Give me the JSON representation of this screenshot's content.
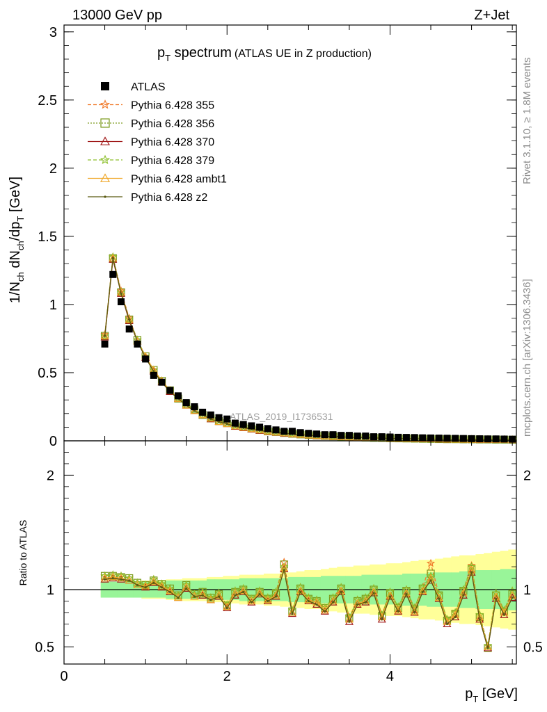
{
  "header": {
    "energy_label": "13000 GeV pp",
    "process_label": "Z+Jet",
    "plot_title_main": "p",
    "plot_title_sub": "T",
    "plot_title_rest": " spectrum",
    "plot_title_paren": "(ATLAS UE in Z production)",
    "watermark": "ATLAS_2019_I1736531",
    "side_label_top": "Rivet 3.1.10, ≥ 1.8M events",
    "side_label_bottom": "mcplots.cern.ch [arXiv:1306.3436]"
  },
  "colors": {
    "data": "#000000",
    "p355": "#f07a2a",
    "p356": "#7a9a1a",
    "p370": "#a01818",
    "p379": "#8cbf2a",
    "ambt1": "#f0a82a",
    "z2": "#5a5a12",
    "band_inner": "#99f599",
    "band_outer": "#ffff99"
  },
  "chart_data": [
    {
      "type": "scatter",
      "title": "pT spectrum (ATLAS UE in Z production)",
      "ylabel": "1/N_ch dN_ch/dp_T [GeV]",
      "xlabel": "p_T [GeV]",
      "xlim": [
        0,
        5.55
      ],
      "ylim": [
        0,
        3.05
      ],
      "yticks": [
        "0",
        "0.5",
        "1",
        "1.5",
        "2",
        "2.5",
        "3"
      ],
      "legend_position": "top-left",
      "x": [
        0.5,
        0.6,
        0.7,
        0.8,
        0.9,
        1.0,
        1.1,
        1.2,
        1.3,
        1.4,
        1.5,
        1.6,
        1.7,
        1.8,
        1.9,
        2.0,
        2.1,
        2.2,
        2.3,
        2.4,
        2.5,
        2.6,
        2.7,
        2.8,
        2.9,
        3.0,
        3.1,
        3.2,
        3.3,
        3.4,
        3.5,
        3.6,
        3.7,
        3.8,
        3.9,
        4.0,
        4.1,
        4.2,
        4.3,
        4.4,
        4.5,
        4.6,
        4.7,
        4.8,
        4.9,
        5.0,
        5.1,
        5.2,
        5.3,
        5.4,
        5.5
      ],
      "series": [
        {
          "name": "ATLAS",
          "values": [
            0.71,
            1.22,
            1.02,
            0.82,
            0.71,
            0.6,
            0.48,
            0.43,
            0.37,
            0.33,
            0.28,
            0.25,
            0.21,
            0.19,
            0.17,
            0.16,
            0.13,
            0.12,
            0.11,
            0.1,
            0.09,
            0.08,
            0.07,
            0.07,
            0.06,
            0.055,
            0.05,
            0.045,
            0.045,
            0.04,
            0.04,
            0.035,
            0.035,
            0.03,
            0.03,
            0.028,
            0.026,
            0.025,
            0.024,
            0.022,
            0.021,
            0.02,
            0.019,
            0.018,
            0.017,
            0.016,
            0.015,
            0.014,
            0.014,
            0.013,
            0.012
          ]
        },
        {
          "name": "Pythia 6.428 355",
          "values": [
            0.78,
            1.35,
            1.1,
            0.9,
            0.74,
            0.62,
            0.52,
            0.44,
            0.37,
            0.31,
            0.27,
            0.23,
            0.19,
            0.165,
            0.145,
            0.13,
            0.11,
            0.1,
            0.09,
            0.08,
            0.07,
            0.065,
            0.058,
            0.052,
            0.047,
            0.043,
            0.039,
            0.036,
            0.033,
            0.03,
            0.028,
            0.026,
            0.024,
            0.022,
            0.021,
            0.019,
            0.018,
            0.017,
            0.016,
            0.015,
            0.014,
            0.013,
            0.012,
            0.012,
            0.011,
            0.011,
            0.01,
            0.01,
            0.009,
            0.009,
            0.008
          ]
        },
        {
          "name": "Pythia 6.428 356",
          "values": [
            0.77,
            1.34,
            1.09,
            0.89,
            0.74,
            0.62,
            0.52,
            0.44,
            0.37,
            0.31,
            0.27,
            0.23,
            0.19,
            0.165,
            0.145,
            0.13,
            0.11,
            0.1,
            0.09,
            0.08,
            0.07,
            0.065,
            0.058,
            0.052,
            0.047,
            0.043,
            0.039,
            0.036,
            0.033,
            0.03,
            0.028,
            0.026,
            0.024,
            0.022,
            0.021,
            0.019,
            0.018,
            0.017,
            0.016,
            0.015,
            0.014,
            0.013,
            0.012,
            0.012,
            0.011,
            0.011,
            0.01,
            0.01,
            0.009,
            0.009,
            0.008
          ]
        },
        {
          "name": "Pythia 6.428 370",
          "values": [
            0.76,
            1.33,
            1.08,
            0.88,
            0.73,
            0.61,
            0.51,
            0.43,
            0.36,
            0.31,
            0.26,
            0.22,
            0.19,
            0.16,
            0.14,
            0.125,
            0.105,
            0.095,
            0.085,
            0.075,
            0.068,
            0.062,
            0.055,
            0.05,
            0.045,
            0.041,
            0.037,
            0.034,
            0.031,
            0.029,
            0.027,
            0.025,
            0.023,
            0.021,
            0.02,
            0.018,
            0.017,
            0.016,
            0.015,
            0.014,
            0.013,
            0.012,
            0.011,
            0.011,
            0.01,
            0.01,
            0.009,
            0.009,
            0.008,
            0.008,
            0.007
          ]
        },
        {
          "name": "Pythia 6.428 379",
          "values": [
            0.77,
            1.35,
            1.09,
            0.89,
            0.74,
            0.62,
            0.52,
            0.44,
            0.37,
            0.31,
            0.27,
            0.23,
            0.19,
            0.165,
            0.145,
            0.13,
            0.11,
            0.1,
            0.09,
            0.08,
            0.07,
            0.065,
            0.058,
            0.052,
            0.047,
            0.043,
            0.039,
            0.036,
            0.033,
            0.03,
            0.028,
            0.026,
            0.024,
            0.022,
            0.021,
            0.019,
            0.018,
            0.017,
            0.016,
            0.015,
            0.014,
            0.013,
            0.012,
            0.012,
            0.011,
            0.011,
            0.01,
            0.01,
            0.009,
            0.009,
            0.008
          ]
        },
        {
          "name": "Pythia 6.428 ambt1",
          "values": [
            0.77,
            1.34,
            1.09,
            0.89,
            0.73,
            0.62,
            0.52,
            0.44,
            0.37,
            0.31,
            0.26,
            0.22,
            0.19,
            0.165,
            0.14,
            0.125,
            0.108,
            0.098,
            0.088,
            0.078,
            0.07,
            0.063,
            0.057,
            0.051,
            0.046,
            0.042,
            0.038,
            0.035,
            0.032,
            0.03,
            0.027,
            0.025,
            0.023,
            0.022,
            0.02,
            0.019,
            0.018,
            0.016,
            0.015,
            0.014,
            0.014,
            0.013,
            0.012,
            0.011,
            0.011,
            0.01,
            0.01,
            0.009,
            0.009,
            0.008,
            0.008
          ]
        },
        {
          "name": "Pythia 6.428 z2",
          "values": [
            0.77,
            1.34,
            1.08,
            0.89,
            0.73,
            0.61,
            0.51,
            0.43,
            0.36,
            0.31,
            0.26,
            0.22,
            0.19,
            0.16,
            0.14,
            0.125,
            0.106,
            0.096,
            0.086,
            0.076,
            0.069,
            0.062,
            0.056,
            0.05,
            0.045,
            0.041,
            0.037,
            0.034,
            0.031,
            0.029,
            0.027,
            0.025,
            0.023,
            0.021,
            0.02,
            0.018,
            0.017,
            0.016,
            0.015,
            0.014,
            0.013,
            0.012,
            0.011,
            0.011,
            0.01,
            0.01,
            0.009,
            0.009,
            0.008,
            0.008,
            0.007
          ]
        }
      ]
    },
    {
      "type": "line",
      "ylabel": "Ratio to ATLAS",
      "xlabel": "p_T [GeV]",
      "xlim": [
        0,
        5.55
      ],
      "ylim": [
        0.35,
        2.3
      ],
      "yticks": [
        "0.5",
        "1",
        "2"
      ],
      "xticks": [
        "0",
        "2",
        "4"
      ],
      "x": [
        0.5,
        0.6,
        0.7,
        0.8,
        0.9,
        1.0,
        1.1,
        1.2,
        1.3,
        1.4,
        1.5,
        1.6,
        1.7,
        1.8,
        1.9,
        2.0,
        2.1,
        2.2,
        2.3,
        2.4,
        2.5,
        2.6,
        2.7,
        2.8,
        2.9,
        3.0,
        3.1,
        3.2,
        3.3,
        3.4,
        3.5,
        3.6,
        3.7,
        3.8,
        3.9,
        4.0,
        4.1,
        4.2,
        4.3,
        4.4,
        4.5,
        4.6,
        4.7,
        4.8,
        4.9,
        5.0,
        5.1,
        5.2,
        5.3,
        5.4,
        5.5
      ],
      "band_inner": [
        0.07,
        0.07,
        0.07,
        0.07,
        0.07,
        0.07,
        0.07,
        0.07,
        0.08,
        0.08,
        0.08,
        0.08,
        0.08,
        0.09,
        0.09,
        0.09,
        0.09,
        0.1,
        0.1,
        0.1,
        0.1,
        0.1,
        0.1,
        0.11,
        0.11,
        0.11,
        0.11,
        0.12,
        0.12,
        0.12,
        0.12,
        0.12,
        0.13,
        0.13,
        0.13,
        0.13,
        0.13,
        0.14,
        0.14,
        0.14,
        0.15,
        0.15,
        0.15,
        0.15,
        0.16,
        0.16,
        0.17,
        0.17,
        0.17,
        0.18,
        0.18
      ],
      "band_outer": [
        0.06,
        0.06,
        0.06,
        0.07,
        0.07,
        0.08,
        0.08,
        0.08,
        0.09,
        0.09,
        0.1,
        0.1,
        0.1,
        0.11,
        0.11,
        0.12,
        0.12,
        0.13,
        0.13,
        0.13,
        0.14,
        0.14,
        0.15,
        0.15,
        0.16,
        0.17,
        0.17,
        0.18,
        0.19,
        0.2,
        0.2,
        0.21,
        0.21,
        0.22,
        0.22,
        0.23,
        0.23,
        0.24,
        0.25,
        0.26,
        0.26,
        0.27,
        0.28,
        0.29,
        0.3,
        0.3,
        0.31,
        0.32,
        0.33,
        0.34,
        0.35
      ],
      "series": [
        {
          "name": "Pythia 6.428 355",
          "values": [
            1.12,
            1.13,
            1.12,
            1.1,
            1.06,
            1.04,
            1.09,
            1.05,
            1.01,
            0.95,
            1.04,
            0.96,
            0.98,
            0.93,
            0.97,
            0.87,
            0.99,
            1.01,
            0.92,
            0.99,
            0.93,
            0.98,
            1.24,
            0.82,
            1.02,
            0.93,
            0.91,
            0.84,
            0.93,
            1.02,
            0.76,
            0.91,
            0.93,
            1.01,
            0.78,
            0.98,
            0.85,
            1.0,
            0.84,
            1.02,
            1.23,
            0.96,
            0.74,
            0.8,
            1.0,
            1.21,
            0.78,
            0.51,
            0.97,
            0.82,
            0.99
          ]
        },
        {
          "name": "Pythia 6.428 356",
          "values": [
            1.12,
            1.12,
            1.11,
            1.1,
            1.06,
            1.04,
            1.08,
            1.05,
            1.01,
            0.95,
            1.04,
            0.96,
            0.98,
            0.93,
            0.96,
            0.86,
            0.98,
            1.0,
            0.92,
            0.98,
            0.92,
            0.97,
            1.22,
            0.81,
            1.01,
            0.92,
            0.9,
            0.84,
            0.92,
            1.01,
            0.75,
            0.9,
            0.92,
            1.0,
            0.77,
            0.97,
            0.84,
            0.99,
            0.83,
            1.01,
            1.14,
            0.95,
            0.73,
            0.79,
            0.99,
            1.18,
            0.76,
            0.49,
            0.95,
            0.81,
            0.96
          ]
        },
        {
          "name": "Pythia 6.428 370",
          "values": [
            1.09,
            1.1,
            1.09,
            1.08,
            1.04,
            1.02,
            1.06,
            1.02,
            0.98,
            0.93,
            1.01,
            0.94,
            0.95,
            0.91,
            0.94,
            0.84,
            0.95,
            0.98,
            0.89,
            0.96,
            0.9,
            0.94,
            1.18,
            0.79,
            0.98,
            0.9,
            0.87,
            0.81,
            0.89,
            0.98,
            0.72,
            0.87,
            0.89,
            0.97,
            0.74,
            0.94,
            0.81,
            0.96,
            0.8,
            0.98,
            1.08,
            0.92,
            0.7,
            0.76,
            0.95,
            1.15,
            0.74,
            0.49,
            0.92,
            0.78,
            0.93
          ]
        },
        {
          "name": "Pythia 6.428 379",
          "values": [
            1.12,
            1.13,
            1.12,
            1.1,
            1.06,
            1.04,
            1.09,
            1.05,
            1.01,
            0.95,
            1.04,
            0.96,
            0.98,
            0.93,
            0.97,
            0.87,
            0.99,
            1.01,
            0.92,
            0.99,
            0.93,
            0.98,
            1.2,
            0.82,
            1.02,
            0.93,
            0.91,
            0.84,
            0.93,
            1.02,
            0.76,
            0.91,
            0.93,
            1.01,
            0.78,
            0.98,
            0.85,
            1.0,
            0.84,
            1.02,
            1.12,
            0.96,
            0.74,
            0.8,
            1.0,
            1.2,
            0.78,
            0.51,
            0.97,
            0.82,
            0.99
          ]
        },
        {
          "name": "Pythia 6.428 ambt1",
          "values": [
            1.1,
            1.11,
            1.1,
            1.08,
            1.04,
            1.03,
            1.07,
            1.03,
            0.99,
            0.93,
            1.02,
            0.94,
            0.96,
            0.91,
            0.95,
            0.85,
            0.97,
            0.99,
            0.9,
            0.97,
            0.91,
            0.95,
            1.19,
            0.8,
            0.99,
            0.91,
            0.89,
            0.82,
            0.9,
            0.99,
            0.74,
            0.88,
            0.9,
            0.98,
            0.76,
            0.95,
            0.82,
            0.97,
            0.81,
            0.99,
            1.1,
            0.93,
            0.72,
            0.78,
            0.97,
            1.17,
            0.76,
            0.5,
            0.94,
            0.8,
            0.95
          ]
        },
        {
          "name": "Pythia 6.428 z2",
          "values": [
            1.09,
            1.1,
            1.09,
            1.08,
            1.04,
            1.02,
            1.06,
            1.02,
            0.98,
            0.93,
            1.01,
            0.94,
            0.95,
            0.91,
            0.94,
            0.84,
            0.95,
            0.98,
            0.89,
            0.96,
            0.9,
            0.94,
            1.17,
            0.79,
            0.98,
            0.9,
            0.87,
            0.81,
            0.89,
            0.98,
            0.72,
            0.87,
            0.89,
            0.97,
            0.74,
            0.94,
            0.81,
            0.96,
            0.8,
            0.98,
            1.08,
            0.92,
            0.7,
            0.76,
            0.95,
            1.15,
            0.74,
            0.49,
            0.92,
            0.78,
            0.93
          ]
        }
      ]
    }
  ]
}
